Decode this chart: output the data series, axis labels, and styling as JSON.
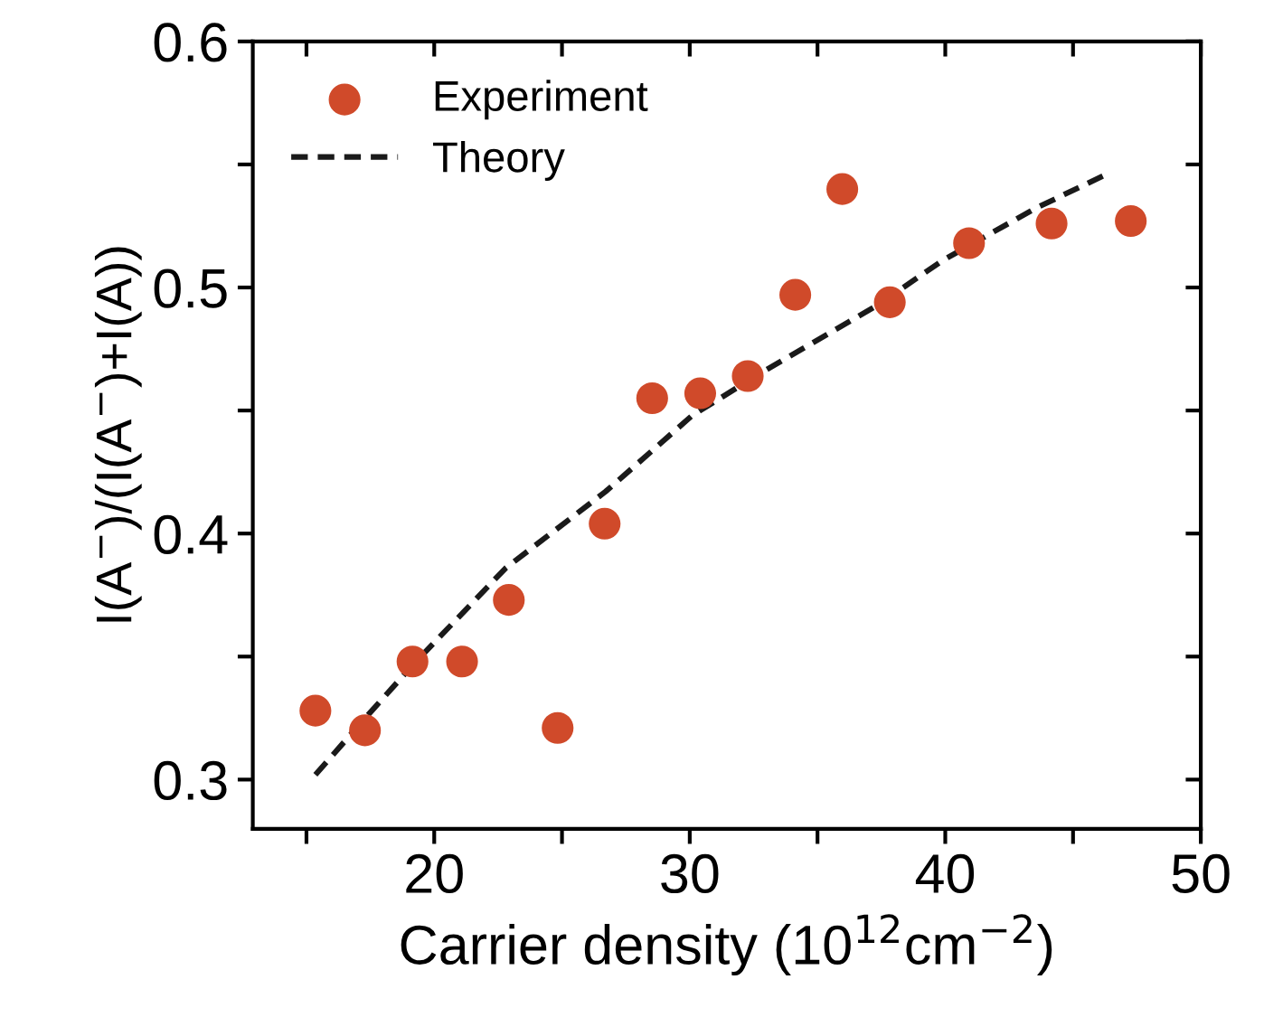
{
  "chart_data": {
    "type": "scatter",
    "xlabel": "Carrier density (10$^{12}$cm$^{−2}$)",
    "ylabel": "I(A$^{−}$)/(I(A$^{−}$)+I(A))",
    "xlim": [
      12.9,
      50
    ],
    "ylim": [
      0.28,
      0.6
    ],
    "xticks": [
      {
        "value": 15,
        "label": null
      },
      20,
      {
        "value": 25,
        "label": null
      },
      30,
      {
        "value": 35,
        "label": null
      },
      40,
      {
        "value": 45,
        "label": null
      },
      50
    ],
    "yticks": [
      0.3,
      {
        "value": 0.35,
        "label": null
      },
      0.4,
      {
        "value": 0.45,
        "label": null
      },
      0.5,
      {
        "value": 0.55,
        "label": null
      },
      0.6
    ],
    "grid": false,
    "legend": "top left",
    "series": [
      {
        "name": "Experiment",
        "marker": "circle",
        "color": "#d04a2a",
        "x": [
          15.35,
          17.29,
          19.15,
          21.09,
          22.92,
          24.83,
          26.67,
          28.53,
          30.41,
          32.27,
          34.13,
          35.97,
          37.83,
          40.93,
          44.16,
          47.26
        ],
        "values": [
          0.328,
          0.32,
          0.348,
          0.348,
          0.373,
          0.321,
          0.404,
          0.455,
          0.457,
          0.464,
          0.497,
          0.54,
          0.494,
          0.518,
          0.526,
          0.527
        ]
      },
      {
        "name": "Theory",
        "type": "line",
        "line_style": "dashed",
        "color": "#1a1a1a",
        "x": [
          15.35,
          17.3,
          19.2,
          22.8,
          26.7,
          30.1,
          32.9,
          37.3,
          39.9,
          43.5,
          46.3
        ],
        "values": [
          0.302,
          0.325,
          0.347,
          0.386,
          0.417,
          0.448,
          0.466,
          0.4925,
          0.511,
          0.532,
          0.546
        ]
      }
    ]
  }
}
